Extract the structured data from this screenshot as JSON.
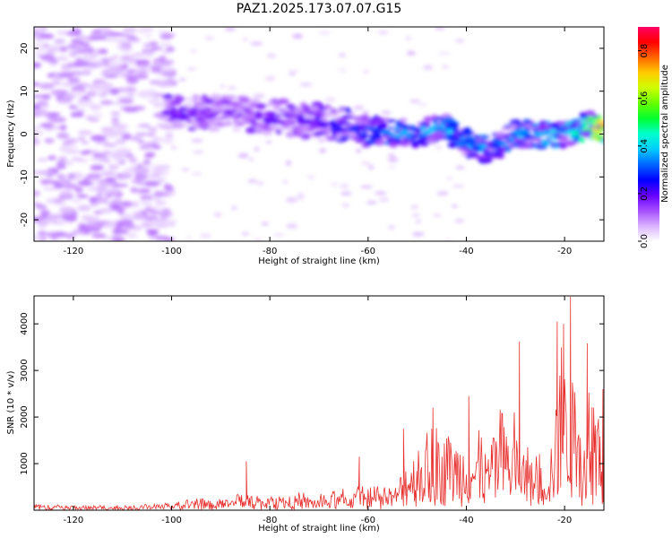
{
  "title": "PAZ1.2025.173.07.07.G15",
  "chart_data": [
    {
      "type": "heatmap",
      "xlabel": "Height of straight line (km)",
      "ylabel": "Frequency (Hz)",
      "xlim": [
        -128,
        -12
      ],
      "ylim": [
        -25,
        25
      ],
      "x_ticks": [
        -120,
        -100,
        -80,
        -60,
        -40,
        -20
      ],
      "y_ticks": [
        -20,
        -10,
        0,
        10,
        20
      ],
      "colorbar": {
        "label": "Normalized spectral amplitude",
        "range": [
          0,
          0.9
        ],
        "ticks": [
          0.0,
          0.2,
          0.4,
          0.6,
          0.8
        ],
        "colors": [
          "#ffffff",
          "#d9b3ff",
          "#a64dff",
          "#6600ff",
          "#0000ff",
          "#0066ff",
          "#00ccff",
          "#00ffcc",
          "#00ff33",
          "#66ff00",
          "#ccff00",
          "#ffcc00",
          "#ff6600",
          "#ff0000",
          "#ff0066"
        ]
      },
      "ridge": [
        {
          "x": -100,
          "y": 5,
          "amp": 0.18
        },
        {
          "x": -90,
          "y": 5,
          "amp": 0.14
        },
        {
          "x": -80,
          "y": 4,
          "amp": 0.16
        },
        {
          "x": -70,
          "y": 3,
          "amp": 0.18
        },
        {
          "x": -60,
          "y": 1,
          "amp": 0.25
        },
        {
          "x": -50,
          "y": 0,
          "amp": 0.32
        },
        {
          "x": -45,
          "y": 2,
          "amp": 0.33
        },
        {
          "x": -40,
          "y": -2,
          "amp": 0.3
        },
        {
          "x": -35,
          "y": -4,
          "amp": 0.3
        },
        {
          "x": -30,
          "y": 0,
          "amp": 0.3
        },
        {
          "x": -20,
          "y": 0,
          "amp": 0.35
        },
        {
          "x": -15,
          "y": 2,
          "amp": 0.45
        },
        {
          "x": -12,
          "y": 1,
          "amp": 0.75
        }
      ]
    },
    {
      "type": "line",
      "xlabel": "Height of straight line (km)",
      "ylabel": "SNR (10 * v/v)",
      "xlim": [
        -128,
        -12
      ],
      "ylim": [
        0,
        4600
      ],
      "x_ticks": [
        -120,
        -100,
        -80,
        -60,
        -40,
        -20
      ],
      "y_ticks": [
        1000,
        2000,
        3000,
        4000
      ],
      "color": "#e8312f",
      "envelope": [
        {
          "x": -128,
          "y": 90
        },
        {
          "x": -110,
          "y": 80
        },
        {
          "x": -100,
          "y": 120
        },
        {
          "x": -95,
          "y": 200
        },
        {
          "x": -90,
          "y": 180
        },
        {
          "x": -85,
          "y": 300
        },
        {
          "x": -80,
          "y": 220
        },
        {
          "x": -75,
          "y": 300
        },
        {
          "x": -70,
          "y": 250
        },
        {
          "x": -65,
          "y": 350
        },
        {
          "x": -60,
          "y": 400
        },
        {
          "x": -55,
          "y": 350
        },
        {
          "x": -52,
          "y": 1100
        },
        {
          "x": -48,
          "y": 1300
        },
        {
          "x": -44,
          "y": 1500
        },
        {
          "x": -40,
          "y": 1400
        },
        {
          "x": -36,
          "y": 1200
        },
        {
          "x": -33,
          "y": 1800
        },
        {
          "x": -30,
          "y": 1600
        },
        {
          "x": -28,
          "y": 1100
        },
        {
          "x": -25,
          "y": 900
        },
        {
          "x": -23,
          "y": 1300
        },
        {
          "x": -21,
          "y": 2600
        },
        {
          "x": -19,
          "y": 3200
        },
        {
          "x": -17,
          "y": 1400
        },
        {
          "x": -15,
          "y": 2200
        },
        {
          "x": -13,
          "y": 1800
        },
        {
          "x": -12,
          "y": 2000
        }
      ],
      "peaks": [
        {
          "x": -84.8,
          "y": 1050
        },
        {
          "x": -61.8,
          "y": 1150
        },
        {
          "x": -52.8,
          "y": 1750
        },
        {
          "x": -46.8,
          "y": 2200
        },
        {
          "x": -39.5,
          "y": 2450
        },
        {
          "x": -29.2,
          "y": 3620
        },
        {
          "x": -21.5,
          "y": 4050
        },
        {
          "x": -20.2,
          "y": 4000
        },
        {
          "x": -18.8,
          "y": 4580
        },
        {
          "x": -15.4,
          "y": 3580
        },
        {
          "x": -12.2,
          "y": 2600
        }
      ]
    }
  ]
}
